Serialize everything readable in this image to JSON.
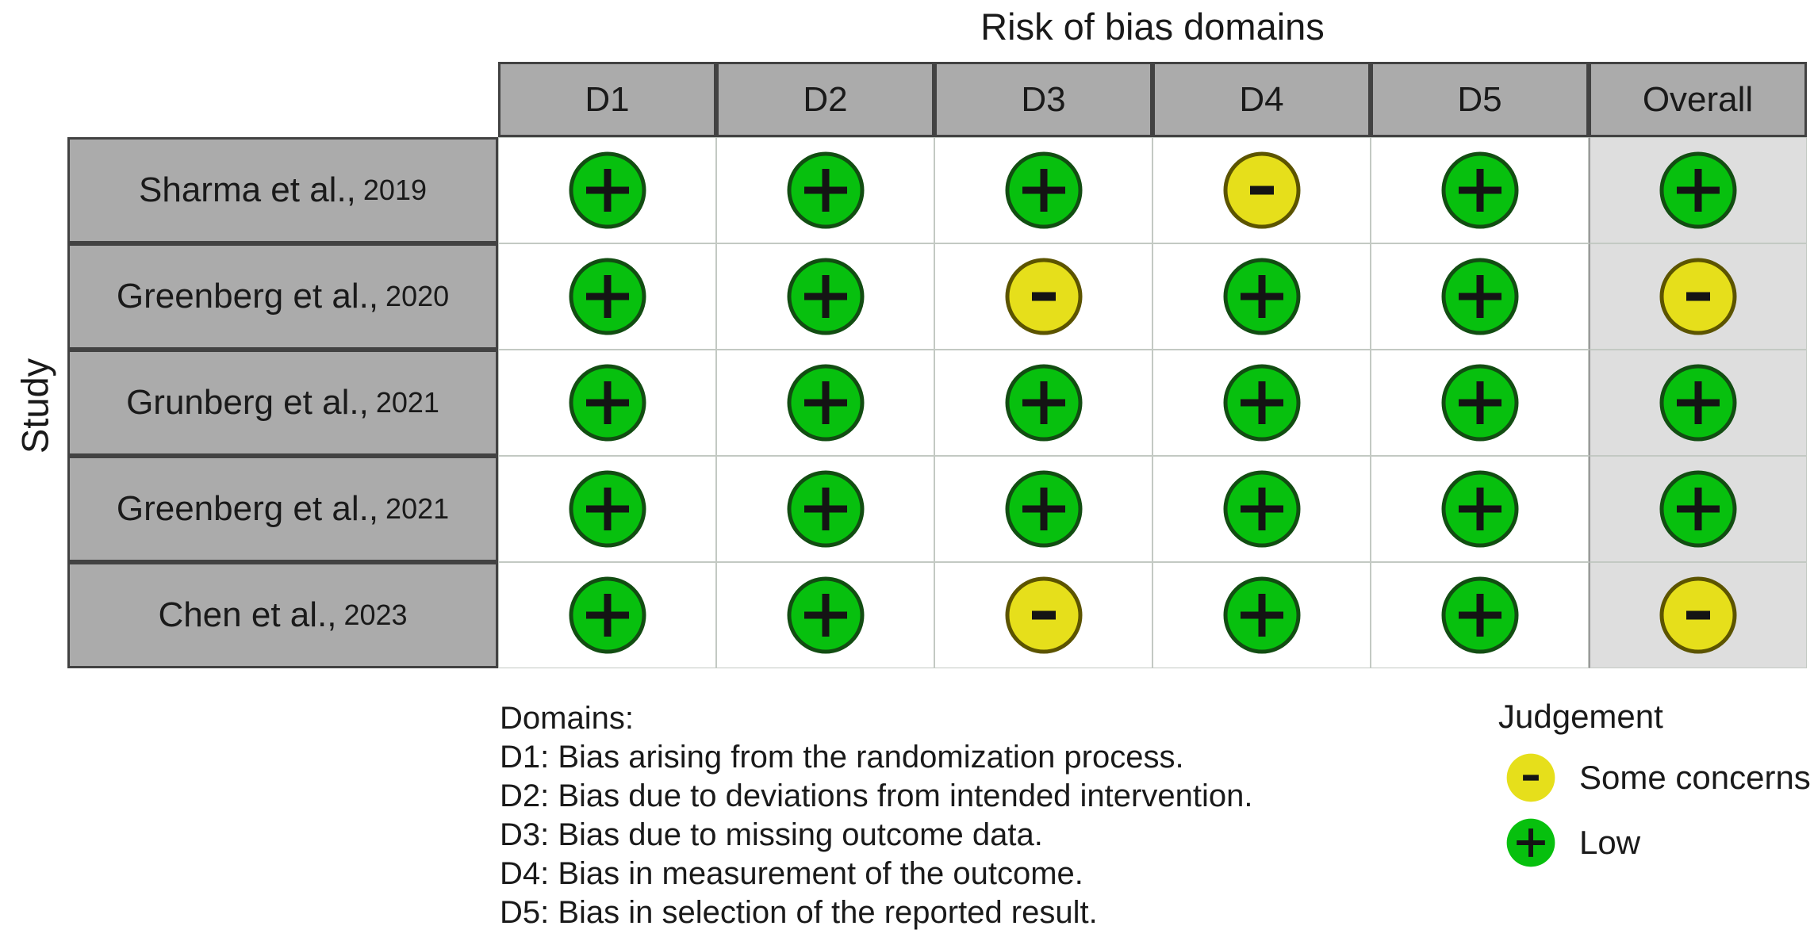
{
  "chart_data": {
    "type": "table",
    "title": "Risk of bias domains",
    "ylabel": "Study",
    "columns": [
      "D1",
      "D2",
      "D3",
      "D4",
      "D5",
      "Overall"
    ],
    "rows": [
      {
        "study": "Sharma et al.,",
        "year": "2019",
        "judgements": [
          "low",
          "low",
          "low",
          "some-concerns",
          "low",
          "low"
        ]
      },
      {
        "study": "Greenberg et al.,",
        "year": "2020",
        "judgements": [
          "low",
          "low",
          "some-concerns",
          "low",
          "low",
          "some-concerns"
        ]
      },
      {
        "study": "Grunberg et al.,",
        "year": "2021",
        "judgements": [
          "low",
          "low",
          "low",
          "low",
          "low",
          "low"
        ]
      },
      {
        "study": "Greenberg et al.,",
        "year": "2021",
        "judgements": [
          "low",
          "low",
          "low",
          "low",
          "low",
          "low"
        ]
      },
      {
        "study": "Chen et al.,",
        "year": "2023",
        "judgements": [
          "low",
          "low",
          "some-concerns",
          "low",
          "low",
          "some-concerns"
        ]
      }
    ],
    "judgement_symbols": {
      "low": "+",
      "some-concerns": "-"
    },
    "judgement_colors": {
      "low": "#07c00e",
      "some-concerns": "#e6df1b"
    },
    "judgement_borders": {
      "low": "#124d12",
      "some-concerns": "#5c5400"
    },
    "legend_position": "bottom-right",
    "grid": "on"
  },
  "legend": {
    "title": "Judgement",
    "items": [
      {
        "key": "some-concerns",
        "label": "Some concerns",
        "symbol": "-",
        "color": "#e6df1b"
      },
      {
        "key": "low",
        "label": "Low",
        "symbol": "+",
        "color": "#07c00e"
      }
    ]
  },
  "domains_note": {
    "heading": "Domains:",
    "lines": [
      "D1: Bias arising from the randomization process.",
      "D2: Bias due to deviations from intended intervention.",
      "D3: Bias due to missing outcome data.",
      "D4: Bias in measurement of the outcome.",
      "D5: Bias in selection of the reported result."
    ]
  },
  "colors": {
    "header_fill": "#ababab",
    "header_border": "#424242",
    "overall_column_fill": "#dedede",
    "body_cell_border": "#c3c9c3",
    "low_fill": "#07c00e",
    "some_concerns_fill": "#e6df1b",
    "text": "#1a1a1a"
  }
}
